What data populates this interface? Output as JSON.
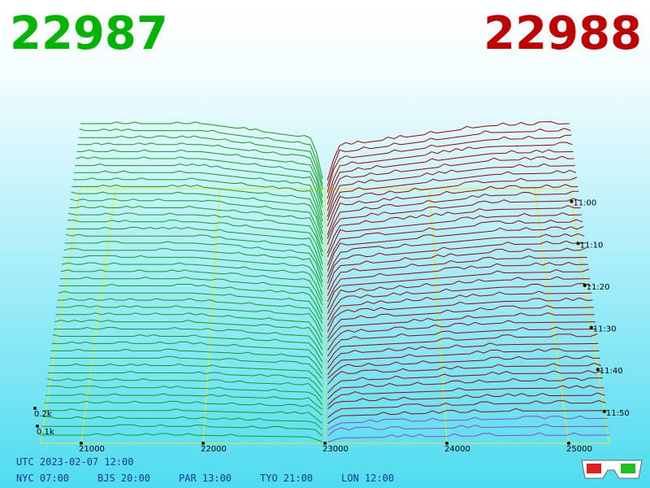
{
  "header": {
    "bid_price": "22987",
    "ask_price": "22988"
  },
  "axes": {
    "x_labels": [
      "21000",
      "22000",
      "23000",
      "24000",
      "25000"
    ],
    "time_labels": [
      "11:00",
      "11:10",
      "11:20",
      "11:30",
      "11:40",
      "11:50"
    ],
    "depth_labels": [
      "0.2k",
      "0.1k"
    ]
  },
  "footer": {
    "utc": "UTC 2023-02-07 12:00",
    "clocks": [
      "NYC 07:00",
      "BJS 20:00",
      "PAR 13:00",
      "TYO 21:00",
      "LON 12:00"
    ]
  }
}
